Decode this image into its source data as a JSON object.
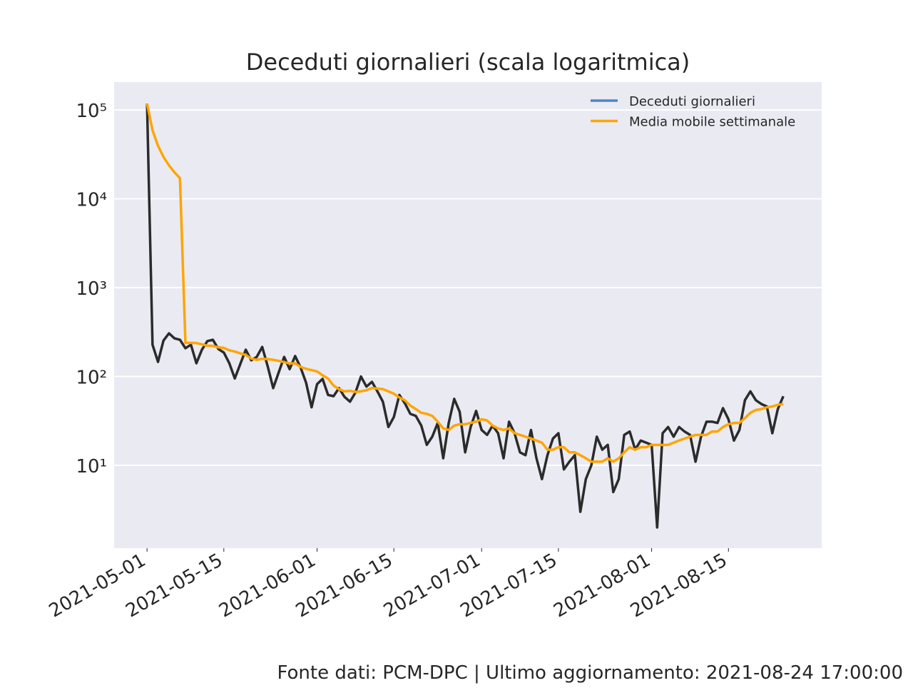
{
  "chart_data": {
    "type": "line",
    "title": "Deceduti giornalieri (scala logaritmica)",
    "footnote": "Fonte dati: PCM-DPC | Ultimo aggiornamento: 2021-08-24 17:00:00",
    "log_y": true,
    "grid": true,
    "legend_position": "upper right",
    "background": "#eaeaf2",
    "xlim": [
      "2021-04-25",
      "2021-09-01"
    ],
    "xticks": [
      "2021-05-01",
      "2021-05-15",
      "2021-06-01",
      "2021-06-15",
      "2021-07-01",
      "2021-07-15",
      "2021-08-01",
      "2021-08-15"
    ],
    "ylim": [
      1.17,
      206000
    ],
    "yticks": [
      {
        "value": 10,
        "label": "10¹"
      },
      {
        "value": 100,
        "label": "10²"
      },
      {
        "value": 1000,
        "label": "10³"
      },
      {
        "value": 10000,
        "label": "10⁴"
      },
      {
        "value": 100000,
        "label": "10⁵"
      }
    ],
    "x": [
      "2021-05-01",
      "2021-05-02",
      "2021-05-03",
      "2021-05-04",
      "2021-05-05",
      "2021-05-06",
      "2021-05-07",
      "2021-05-08",
      "2021-05-09",
      "2021-05-10",
      "2021-05-11",
      "2021-05-12",
      "2021-05-13",
      "2021-05-14",
      "2021-05-15",
      "2021-05-16",
      "2021-05-17",
      "2021-05-18",
      "2021-05-19",
      "2021-05-20",
      "2021-05-21",
      "2021-05-22",
      "2021-05-23",
      "2021-05-24",
      "2021-05-25",
      "2021-05-26",
      "2021-05-27",
      "2021-05-28",
      "2021-05-29",
      "2021-05-30",
      "2021-05-31",
      "2021-06-01",
      "2021-06-02",
      "2021-06-03",
      "2021-06-04",
      "2021-06-05",
      "2021-06-06",
      "2021-06-07",
      "2021-06-08",
      "2021-06-09",
      "2021-06-10",
      "2021-06-11",
      "2021-06-12",
      "2021-06-13",
      "2021-06-14",
      "2021-06-15",
      "2021-06-16",
      "2021-06-17",
      "2021-06-18",
      "2021-06-19",
      "2021-06-20",
      "2021-06-21",
      "2021-06-22",
      "2021-06-23",
      "2021-06-24",
      "2021-06-25",
      "2021-06-26",
      "2021-06-27",
      "2021-06-28",
      "2021-06-29",
      "2021-06-30",
      "2021-07-01",
      "2021-07-02",
      "2021-07-03",
      "2021-07-04",
      "2021-07-05",
      "2021-07-06",
      "2021-07-07",
      "2021-07-08",
      "2021-07-09",
      "2021-07-10",
      "2021-07-11",
      "2021-07-12",
      "2021-07-13",
      "2021-07-14",
      "2021-07-15",
      "2021-07-16",
      "2021-07-17",
      "2021-07-18",
      "2021-07-19",
      "2021-07-20",
      "2021-07-21",
      "2021-07-22",
      "2021-07-23",
      "2021-07-24",
      "2021-07-25",
      "2021-07-26",
      "2021-07-27",
      "2021-07-28",
      "2021-07-29",
      "2021-07-30",
      "2021-07-31",
      "2021-08-01",
      "2021-08-02",
      "2021-08-03",
      "2021-08-04",
      "2021-08-05",
      "2021-08-06",
      "2021-08-07",
      "2021-08-08",
      "2021-08-09",
      "2021-08-10",
      "2021-08-11",
      "2021-08-12",
      "2021-08-13",
      "2021-08-14",
      "2021-08-15",
      "2021-08-16",
      "2021-08-17",
      "2021-08-18",
      "2021-08-19",
      "2021-08-20",
      "2021-08-21",
      "2021-08-22",
      "2021-08-23",
      "2021-08-24",
      "2021-08-25"
    ],
    "series": [
      {
        "name": "Deceduti giornalieri",
        "color": "#2b2b2b",
        "legend_color": "#4c86c6",
        "values": [
          118000,
          228,
          146,
          254,
          306,
          269,
          259,
          208,
          228,
          141,
          200,
          250,
          259,
          204,
          186,
          141,
          95,
          138,
          200,
          152,
          166,
          215,
          130,
          74,
          111,
          166,
          121,
          170,
          126,
          85,
          45,
          82,
          94,
          62,
          60,
          74,
          59,
          52,
          66,
          100,
          77,
          87,
          68,
          52,
          27,
          35,
          62,
          50,
          38,
          36,
          28,
          17,
          21,
          30,
          12,
          30,
          56,
          40,
          14,
          27,
          41,
          25,
          22,
          28,
          23,
          12,
          31,
          23,
          14,
          13,
          25,
          12,
          7,
          13,
          20,
          23,
          9,
          11,
          13,
          3,
          7,
          10,
          21,
          15,
          17,
          5,
          7,
          22,
          24,
          15,
          19,
          18,
          17,
          2,
          23,
          27,
          21,
          27,
          24,
          22,
          11,
          21,
          31,
          31,
          30,
          44,
          33,
          19,
          25,
          54,
          68,
          54,
          49,
          46,
          23,
          43,
          60
        ]
      },
      {
        "name": "Media mobile settimanale",
        "color": "#ffa500",
        "legend_color": "#ffa500",
        "values": [
          118000,
          59114,
          39458,
          29657,
          23787,
          19867,
          17066,
          239,
          239,
          238,
          230,
          222,
          221,
          213,
          210,
          197,
          191,
          182,
          175,
          159,
          154,
          158,
          157,
          154,
          150,
          145,
          140,
          141,
          128,
          122,
          118,
          114,
          103,
          95,
          79,
          72,
          68,
          69,
          67,
          68,
          70,
          74,
          73,
          72,
          68,
          64,
          58,
          54,
          47,
          43,
          39,
          38,
          36,
          31,
          26,
          25,
          28,
          29,
          29,
          30,
          31,
          33,
          32,
          28,
          26,
          25,
          26,
          23,
          22,
          21,
          20,
          19,
          18,
          15,
          15,
          16,
          16,
          14,
          14,
          13,
          12,
          11,
          11,
          11,
          12,
          11,
          12,
          14,
          16,
          15,
          16,
          16,
          17,
          17,
          17,
          17,
          18,
          19,
          20,
          21,
          22,
          22,
          22,
          24,
          24,
          27,
          29,
          30,
          30,
          34,
          39,
          42,
          43,
          45,
          46,
          48,
          49
        ]
      }
    ]
  }
}
